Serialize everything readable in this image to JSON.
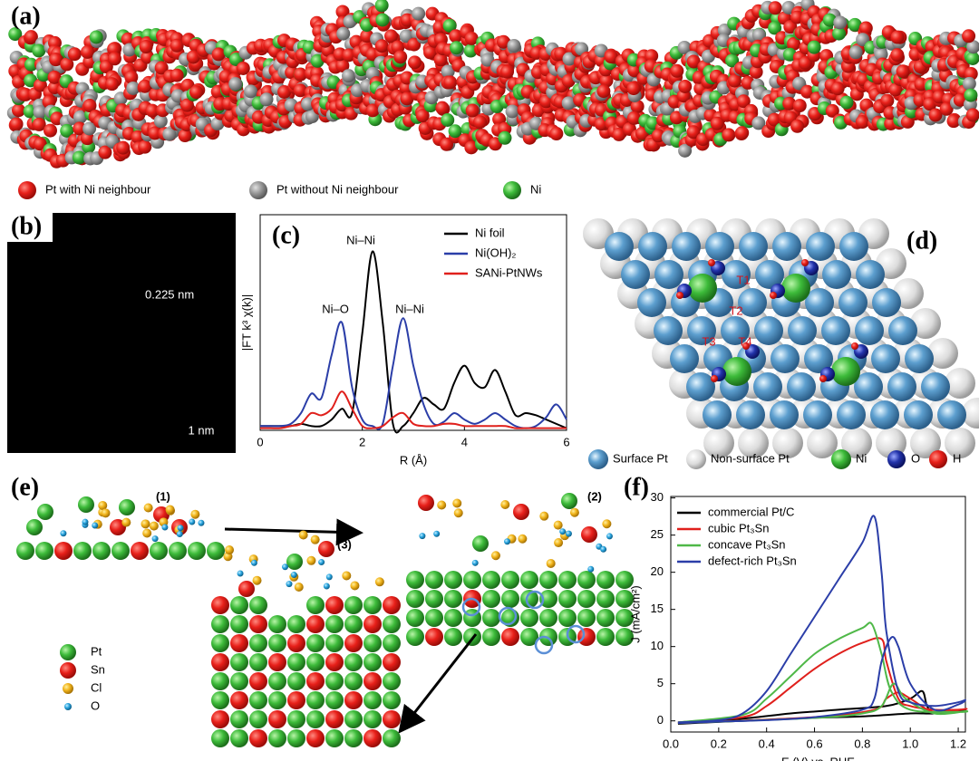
{
  "panels": {
    "a": {
      "label": "(a)",
      "legend": [
        "Pt with Ni neighbour",
        "Pt without Ni neighbour",
        "Ni"
      ]
    },
    "b": {
      "label": "(b)",
      "spacing": "0.225 nm",
      "scale": "1 nm"
    },
    "d": {
      "label": "(d)",
      "sites": [
        "T1",
        "T2",
        "T3",
        "T4"
      ],
      "legend": [
        "Surface Pt",
        "Non-surface Pt",
        "Ni",
        "O",
        "H"
      ]
    },
    "e": {
      "label": "(e)",
      "steps": [
        "(1)",
        "(2)",
        "(3)"
      ],
      "legend": [
        "Pt",
        "Sn",
        "Cl",
        "O"
      ]
    }
  },
  "chart_data": [
    {
      "type": "line",
      "label": "(c)",
      "xlabel": "R (Å)",
      "ylabel": "|FT k³ χ(k)|",
      "x": [
        0,
        0.2,
        0.4,
        0.6,
        0.8,
        1.0,
        1.2,
        1.4,
        1.6,
        1.8,
        2.0,
        2.2,
        2.4,
        2.6,
        2.8,
        3.0,
        3.2,
        3.4,
        3.6,
        3.8,
        4.0,
        4.2,
        4.4,
        4.6,
        4.8,
        5.0,
        5.2,
        5.4,
        5.6,
        5.8,
        6.0
      ],
      "xlim": [
        0,
        6
      ],
      "xticks": [
        0,
        2,
        4,
        6
      ],
      "ylim": [
        0,
        1
      ],
      "annotations": [
        "Ni–Ni",
        "Ni–O",
        "Ni–Ni"
      ],
      "series": [
        {
          "name": "Ni foil",
          "color": "#000000",
          "values": [
            0.02,
            0.02,
            0.02,
            0.02,
            0.03,
            0.02,
            0.02,
            0.05,
            0.1,
            0.08,
            0.45,
            0.83,
            0.5,
            0.03,
            0.02,
            0.08,
            0.15,
            0.12,
            0.1,
            0.22,
            0.3,
            0.22,
            0.2,
            0.28,
            0.18,
            0.07,
            0.08,
            0.07,
            0.05,
            0.03,
            0.01
          ]
        },
        {
          "name": "Ni(OH)₂",
          "color": "#2b3ea8",
          "values": [
            0.02,
            0.02,
            0.02,
            0.03,
            0.08,
            0.17,
            0.15,
            0.35,
            0.5,
            0.2,
            0.05,
            0.02,
            0.03,
            0.3,
            0.52,
            0.3,
            0.12,
            0.03,
            0.04,
            0.08,
            0.05,
            0.03,
            0.05,
            0.08,
            0.05,
            0.02,
            0.01,
            0.02,
            0.06,
            0.12,
            0.05
          ]
        },
        {
          "name": "SANi-PtNWs",
          "color": "#e0201c",
          "values": [
            0.01,
            0.01,
            0.01,
            0.02,
            0.03,
            0.08,
            0.07,
            0.1,
            0.18,
            0.1,
            0.02,
            0.01,
            0.02,
            0.06,
            0.08,
            0.03,
            0.02,
            0.02,
            0.03,
            0.03,
            0.02,
            0.02,
            0.02,
            0.02,
            0.02,
            0.01,
            0.01,
            0.01,
            0.01,
            0.01,
            0.01
          ]
        }
      ]
    },
    {
      "type": "line",
      "label": "(f)",
      "xlabel": "E (V) vs. RHE",
      "ylabel": "J (mA/cm²)",
      "xlim": [
        0,
        1.23
      ],
      "xticks": [
        {
          "value": 0,
          "label": "0.0"
        },
        0.2,
        0.4,
        0.6,
        0.8,
        {
          "value": 1,
          "label": "1.0"
        },
        1.2
      ],
      "ylim": [
        -1.5,
        30.2
      ],
      "yticks": [
        0,
        5,
        10,
        15,
        20,
        25,
        30
      ],
      "series": [
        {
          "name": "commercial Pt/C",
          "color": "#000000",
          "x": [
            0.03,
            0.3,
            0.5,
            0.7,
            0.9,
            1.0,
            1.05,
            1.07,
            1.1,
            1.23,
            1.1,
            1.0,
            0.8,
            0.5,
            0.03
          ],
          "values": [
            -0.3,
            0.3,
            1,
            1.5,
            2,
            3,
            4,
            2,
            1.2,
            1.5,
            1,
            1,
            0.6,
            0.3,
            -0.4
          ]
        },
        {
          "name": "cubic Pt₃Sn",
          "color": "#e0201c",
          "x": [
            0.03,
            0.3,
            0.4,
            0.5,
            0.6,
            0.7,
            0.8,
            0.88,
            0.9,
            0.95,
            1.0,
            1.1,
            1.2,
            1.23,
            1.1,
            1.0,
            0.95,
            0.9,
            0.85,
            0.6,
            0.03
          ],
          "values": [
            -0.2,
            0.5,
            2,
            4.5,
            7,
            9,
            10.5,
            11,
            8,
            3,
            2,
            1.5,
            1.5,
            1.6,
            1.2,
            3,
            3.8,
            3,
            1.5,
            0.5,
            -0.3
          ]
        },
        {
          "name": "concave Pt₃Sn",
          "color": "#4fb848",
          "x": [
            0.03,
            0.3,
            0.4,
            0.5,
            0.6,
            0.7,
            0.8,
            0.84,
            0.88,
            0.92,
            1.0,
            1.2,
            1.23,
            1.1,
            0.98,
            0.93,
            0.88,
            0.8,
            0.6,
            0.03
          ],
          "values": [
            -0.2,
            0.8,
            3,
            6,
            9,
            11,
            12.5,
            13,
            9,
            4,
            1.5,
            1.2,
            1.3,
            1,
            3,
            5,
            2,
            1,
            0.4,
            -0.3
          ]
        },
        {
          "name": "defect-rich Pt₃Sn",
          "color": "#2b3ea8",
          "x": [
            0.03,
            0.2,
            0.3,
            0.4,
            0.5,
            0.6,
            0.7,
            0.8,
            0.85,
            0.88,
            0.9,
            0.95,
            1.0,
            1.1,
            1.2,
            1.23,
            1.2,
            1.1,
            1.0,
            0.95,
            0.92,
            0.88,
            0.85,
            0.8,
            0.6,
            0.4,
            0.2,
            0.03
          ],
          "values": [
            -0.2,
            0.1,
            1,
            4,
            9,
            14,
            19,
            24,
            27.5,
            20,
            12,
            4,
            2.5,
            2,
            2.5,
            2.8,
            2.2,
            1.5,
            5,
            10,
            11.2,
            8,
            3,
            1.5,
            0.5,
            0.1,
            -0.1,
            -0.3
          ]
        }
      ]
    }
  ]
}
